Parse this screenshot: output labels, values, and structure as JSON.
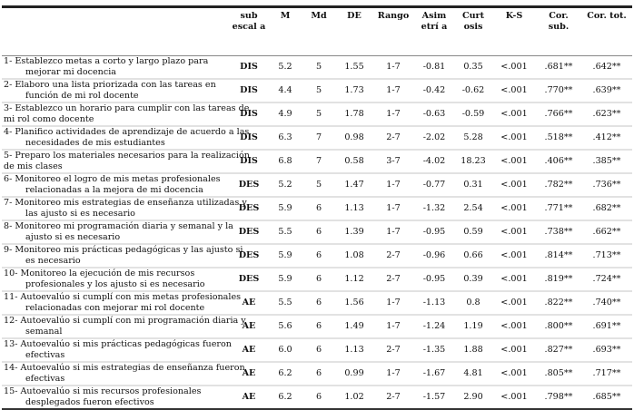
{
  "headers": [
    "",
    "sub escal a",
    "M",
    "Md",
    "DE",
    "Rango",
    "Asim etrí a",
    "Curt osis",
    "K-S",
    "Cor. sub.",
    "Cor. tot."
  ],
  "rows": [
    {
      "l1": "1- Establezco metas a corto y largo plazo para",
      "l2": "mejorar  mi  docencia",
      "ind": true,
      "v": [
        "DIS",
        "5.2",
        "5",
        "1.55",
        "1-7",
        "-0.81",
        "0.35",
        "<.001",
        ".681**",
        ".642**"
      ]
    },
    {
      "l1": "2- Elaboro una lista priorizada con las tareas en",
      "l2": "función  de mi rol docente",
      "ind": true,
      "v": [
        "DIS",
        "4.4",
        "5",
        "1.73",
        "1-7",
        "-0.42",
        "-0.62",
        "<.001",
        ".770**",
        ".639**"
      ]
    },
    {
      "l1": "3- Establezco un horario para cumplir con las tareas de",
      "l2": "mi rol como docente",
      "ind": false,
      "v": [
        "DIS",
        "4.9",
        "5",
        "1.78",
        "1-7",
        "-0.63",
        "-0.59",
        "<.001",
        ".766**",
        ".623**"
      ]
    },
    {
      "l1": "4- Planifico actividades de aprendizaje de acuerdo a las",
      "l2": "necesidades de mis estudiantes",
      "ind": true,
      "v": [
        "DIS",
        "6.3",
        "7",
        "0.98",
        "2-7",
        "-2.02",
        "5.28",
        "<.001",
        ".518**",
        ".412**"
      ]
    },
    {
      "l1": "5- Preparo los materiales necesarios para la realización",
      "l2": "de mis clases",
      "ind": false,
      "v": [
        "DIS",
        "6.8",
        "7",
        "0.58",
        "3-7",
        "-4.02",
        "18.23",
        "<.001",
        ".406**",
        ".385**"
      ]
    },
    {
      "l1": "6- Monitoreo el logro de mis metas profesionales",
      "l2": "relacionadas a la mejora de mi docencia",
      "ind": true,
      "v": [
        "DES",
        "5.2",
        "5",
        "1.47",
        "1-7",
        "-0.77",
        "0.31",
        "<.001",
        ".782**",
        ".736**"
      ]
    },
    {
      "l1": "7- Monitoreo mis estrategias de enseñanza utilizadas y",
      "l2": "las ajusto si es necesario",
      "ind": true,
      "v": [
        "DES",
        "5.9",
        "6",
        "1.13",
        "1-7",
        "-1.32",
        "2.54",
        "<.001",
        ".771**",
        ".682**"
      ]
    },
    {
      "l1": "8- Monitoreo mi programación diaria y semanal y la",
      "l2": "ajusto si es necesario",
      "ind": true,
      "v": [
        "DES",
        "5.5",
        "6",
        "1.39",
        "1-7",
        "-0.95",
        "0.59",
        "<.001",
        ".738**",
        ".662**"
      ]
    },
    {
      "l1": "9- Monitoreo mis prácticas pedagógicas y las ajusto si",
      "l2": "es necesario",
      "ind": true,
      "v": [
        "DES",
        "5.9",
        "6",
        "1.08",
        "2-7",
        "-0.96",
        "0.66",
        "<.001",
        ".814**",
        ".713**"
      ]
    },
    {
      "l1": "10- Monitoreo la ejecución de mis recursos",
      "l2": "profesionales y los ajusto si es necesario",
      "ind": true,
      "v": [
        "DES",
        "5.9",
        "6",
        "1.12",
        "2-7",
        "-0.95",
        "0.39",
        "<.001",
        ".819**",
        ".724**"
      ]
    },
    {
      "l1": "11- Autoevalúo si cumplí con mis metas profesionales",
      "l2": "relacionadas con mejorar mi rol docente",
      "ind": true,
      "v": [
        "AE",
        "5.5",
        "6",
        "1.56",
        "1-7",
        "-1.13",
        "0.8",
        "<.001",
        ".822**",
        ".740**"
      ]
    },
    {
      "l1": "12- Autoevalúo si cumplí con mi programación diaria y",
      "l2": "semanal",
      "ind": true,
      "v": [
        "AE",
        "5.6",
        "6",
        "1.49",
        "1-7",
        "-1.24",
        "1.19",
        "<.001",
        ".800**",
        ".691**"
      ]
    },
    {
      "l1": "13- Autoevalúo si mis prácticas pedagógicas fueron",
      "l2": "efectivas",
      "ind": true,
      "v": [
        "AE",
        "6.0",
        "6",
        "1.13",
        "2-7",
        "-1.35",
        "1.88",
        "<.001",
        ".827**",
        ".693**"
      ]
    },
    {
      "l1": "14- Autoevalúo si mis estrategias de enseñanza fueron",
      "l2": "efectivas",
      "ind": true,
      "v": [
        "AE",
        "6.2",
        "6",
        "0.99",
        "1-7",
        "-1.67",
        "4.81",
        "<.001",
        ".805**",
        ".717**"
      ]
    },
    {
      "l1": "15- Autoevalúo si mis recursos profesionales",
      "l2": "desplegados fueron efectivos",
      "ind": true,
      "v": [
        "AE",
        "6.2",
        "6",
        "1.02",
        "2-7",
        "-1.57",
        "2.90",
        "<.001",
        ".798**",
        ".685**"
      ]
    }
  ]
}
